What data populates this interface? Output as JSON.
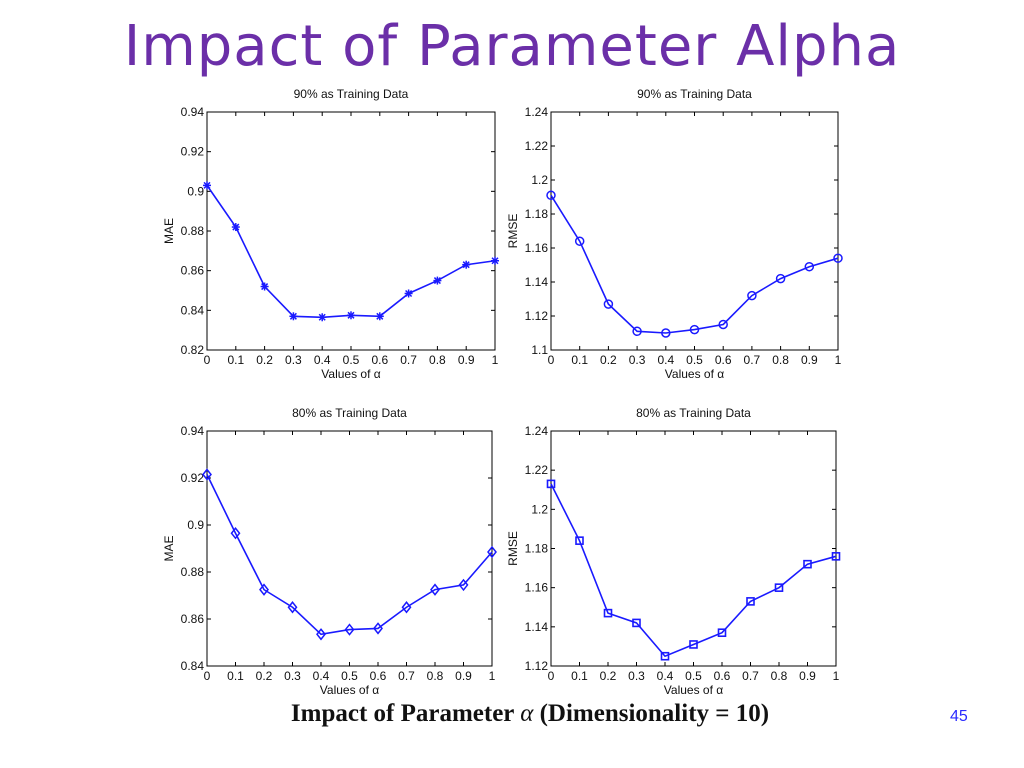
{
  "slide": {
    "title": "Impact of Parameter Alpha",
    "caption_prefix": "Impact of Parameter ",
    "caption_symbol": "α",
    "caption_suffix": " (Dimensionality = 10)",
    "page_number": "45"
  },
  "colors": {
    "title": "#6b2fa8",
    "series": "#1a1aff"
  },
  "chart_data": [
    {
      "type": "line",
      "title": "90% as Training Data",
      "xlabel": "Values of α",
      "ylabel": "MAE",
      "marker": "star",
      "x": [
        0,
        0.1,
        0.2,
        0.3,
        0.4,
        0.5,
        0.6,
        0.7,
        0.8,
        0.9,
        1
      ],
      "y": [
        0.903,
        0.882,
        0.852,
        0.837,
        0.8365,
        0.8375,
        0.837,
        0.8485,
        0.855,
        0.863,
        0.865
      ],
      "xlim": [
        0,
        1
      ],
      "ylim": [
        0.82,
        0.94
      ],
      "xticks": [
        "0",
        "0.1",
        "0.2",
        "0.3",
        "0.4",
        "0.5",
        "0.6",
        "0.7",
        "0.8",
        "0.9",
        "1"
      ],
      "yticks": [
        "0.82",
        "0.84",
        "0.86",
        "0.88",
        "0.9",
        "0.92",
        "0.94"
      ]
    },
    {
      "type": "line",
      "title": "90% as Training Data",
      "xlabel": "Values of α",
      "ylabel": "RMSE",
      "marker": "circle",
      "x": [
        0,
        0.1,
        0.2,
        0.3,
        0.4,
        0.5,
        0.6,
        0.7,
        0.8,
        0.9,
        1
      ],
      "y": [
        1.191,
        1.164,
        1.127,
        1.111,
        1.11,
        1.112,
        1.115,
        1.132,
        1.142,
        1.149,
        1.154
      ],
      "xlim": [
        0,
        1
      ],
      "ylim": [
        1.1,
        1.24
      ],
      "xticks": [
        "0",
        "0.1",
        "0.2",
        "0.3",
        "0.4",
        "0.5",
        "0.6",
        "0.7",
        "0.8",
        "0.9",
        "1"
      ],
      "yticks": [
        "1.1",
        "1.12",
        "1.14",
        "1.16",
        "1.18",
        "1.2",
        "1.22",
        "1.24"
      ]
    },
    {
      "type": "line",
      "title": "80% as Training Data",
      "xlabel": "Values of α",
      "ylabel": "MAE",
      "marker": "diamond",
      "x": [
        0,
        0.1,
        0.2,
        0.3,
        0.4,
        0.5,
        0.6,
        0.7,
        0.8,
        0.9,
        1
      ],
      "y": [
        0.9215,
        0.8965,
        0.8725,
        0.865,
        0.8535,
        0.8555,
        0.856,
        0.865,
        0.8725,
        0.8745,
        0.8885
      ],
      "xlim": [
        0,
        1
      ],
      "ylim": [
        0.84,
        0.94
      ],
      "xticks": [
        "0",
        "0.1",
        "0.2",
        "0.3",
        "0.4",
        "0.5",
        "0.6",
        "0.7",
        "0.8",
        "0.9",
        "1"
      ],
      "yticks": [
        "0.84",
        "0.86",
        "0.88",
        "0.9",
        "0.92",
        "0.94"
      ]
    },
    {
      "type": "line",
      "title": "80% as Training Data",
      "xlabel": "Values of α",
      "ylabel": "RMSE",
      "marker": "square",
      "x": [
        0,
        0.1,
        0.2,
        0.3,
        0.4,
        0.5,
        0.6,
        0.7,
        0.8,
        0.9,
        1
      ],
      "y": [
        1.213,
        1.184,
        1.147,
        1.142,
        1.125,
        1.131,
        1.137,
        1.153,
        1.16,
        1.172,
        1.176
      ],
      "xlim": [
        0,
        1
      ],
      "ylim": [
        1.12,
        1.24
      ],
      "xticks": [
        "0",
        "0.1",
        "0.2",
        "0.3",
        "0.4",
        "0.5",
        "0.6",
        "0.7",
        "0.8",
        "0.9",
        "1"
      ],
      "yticks": [
        "1.12",
        "1.14",
        "1.16",
        "1.18",
        "1.2",
        "1.22",
        "1.24"
      ]
    }
  ]
}
